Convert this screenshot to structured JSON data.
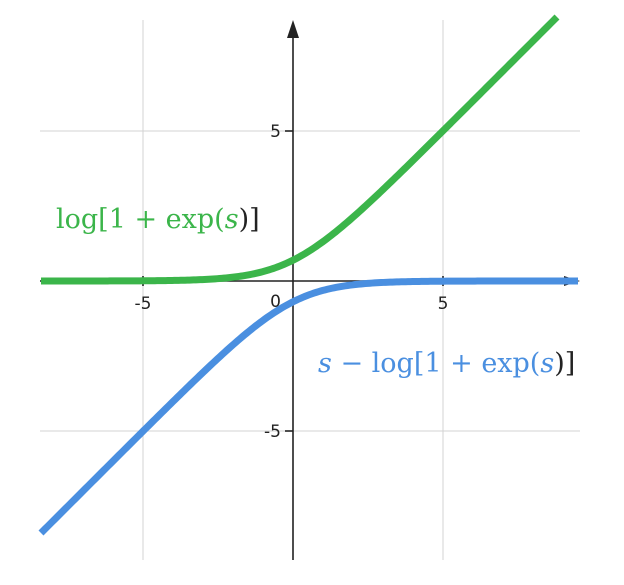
{
  "chart_data": {
    "type": "line",
    "title": "",
    "xlabel": "",
    "ylabel": "",
    "xlim": [
      -8.4,
      9.5
    ],
    "ylim": [
      -9.1,
      8.8
    ],
    "grid": true,
    "x_ticks": [
      -5,
      5
    ],
    "y_ticks": [
      5,
      -5
    ],
    "x_tick_labels": [
      "-5",
      "5"
    ],
    "y_tick_labels": [
      "5",
      "-5"
    ],
    "origin_label": "0",
    "colors": {
      "softplus": "#3bb54a",
      "log_sigmoid": "#4a8fe0",
      "grid": "#d3d3d3",
      "axis": "#222222"
    },
    "series": [
      {
        "name": "log[1 + exp(s)]",
        "function": "softplus",
        "x": [
          -8.4,
          -6,
          -4,
          -3,
          -2,
          -1.5,
          -1,
          -0.5,
          0,
          0.5,
          1,
          1.5,
          2,
          3,
          4,
          5,
          6,
          7,
          8,
          8.8
        ],
        "y": [
          0.0,
          0.002,
          0.018,
          0.049,
          0.127,
          0.201,
          0.313,
          0.474,
          0.693,
          0.974,
          1.313,
          1.701,
          2.127,
          3.049,
          4.018,
          5.007,
          6.002,
          7.001,
          8.0,
          8.8
        ]
      },
      {
        "name": "s − log[1 + exp(s)]",
        "function": "log_sigmoid",
        "x": [
          -8.4,
          -7,
          -6,
          -5,
          -4,
          -3,
          -2,
          -1.5,
          -1,
          -0.5,
          0,
          0.5,
          1,
          1.5,
          2,
          3,
          4,
          5,
          6,
          7,
          8,
          9.5
        ],
        "y": [
          -8.4,
          -7.001,
          -6.002,
          -5.007,
          -4.018,
          -3.049,
          -2.127,
          -1.701,
          -1.313,
          -0.974,
          -0.693,
          -0.474,
          -0.313,
          -0.201,
          -0.127,
          -0.049,
          -0.018,
          -0.007,
          -0.002,
          -0.001,
          0.0,
          0.0
        ]
      }
    ],
    "labels": {
      "softplus": {
        "pre": "log[1 + exp(",
        "var": "s",
        "post": ")]"
      },
      "log_sigmoid": {
        "var1": "s",
        "mid": " − log[1 + exp(",
        "var2": "s",
        "post": ")]"
      }
    }
  }
}
